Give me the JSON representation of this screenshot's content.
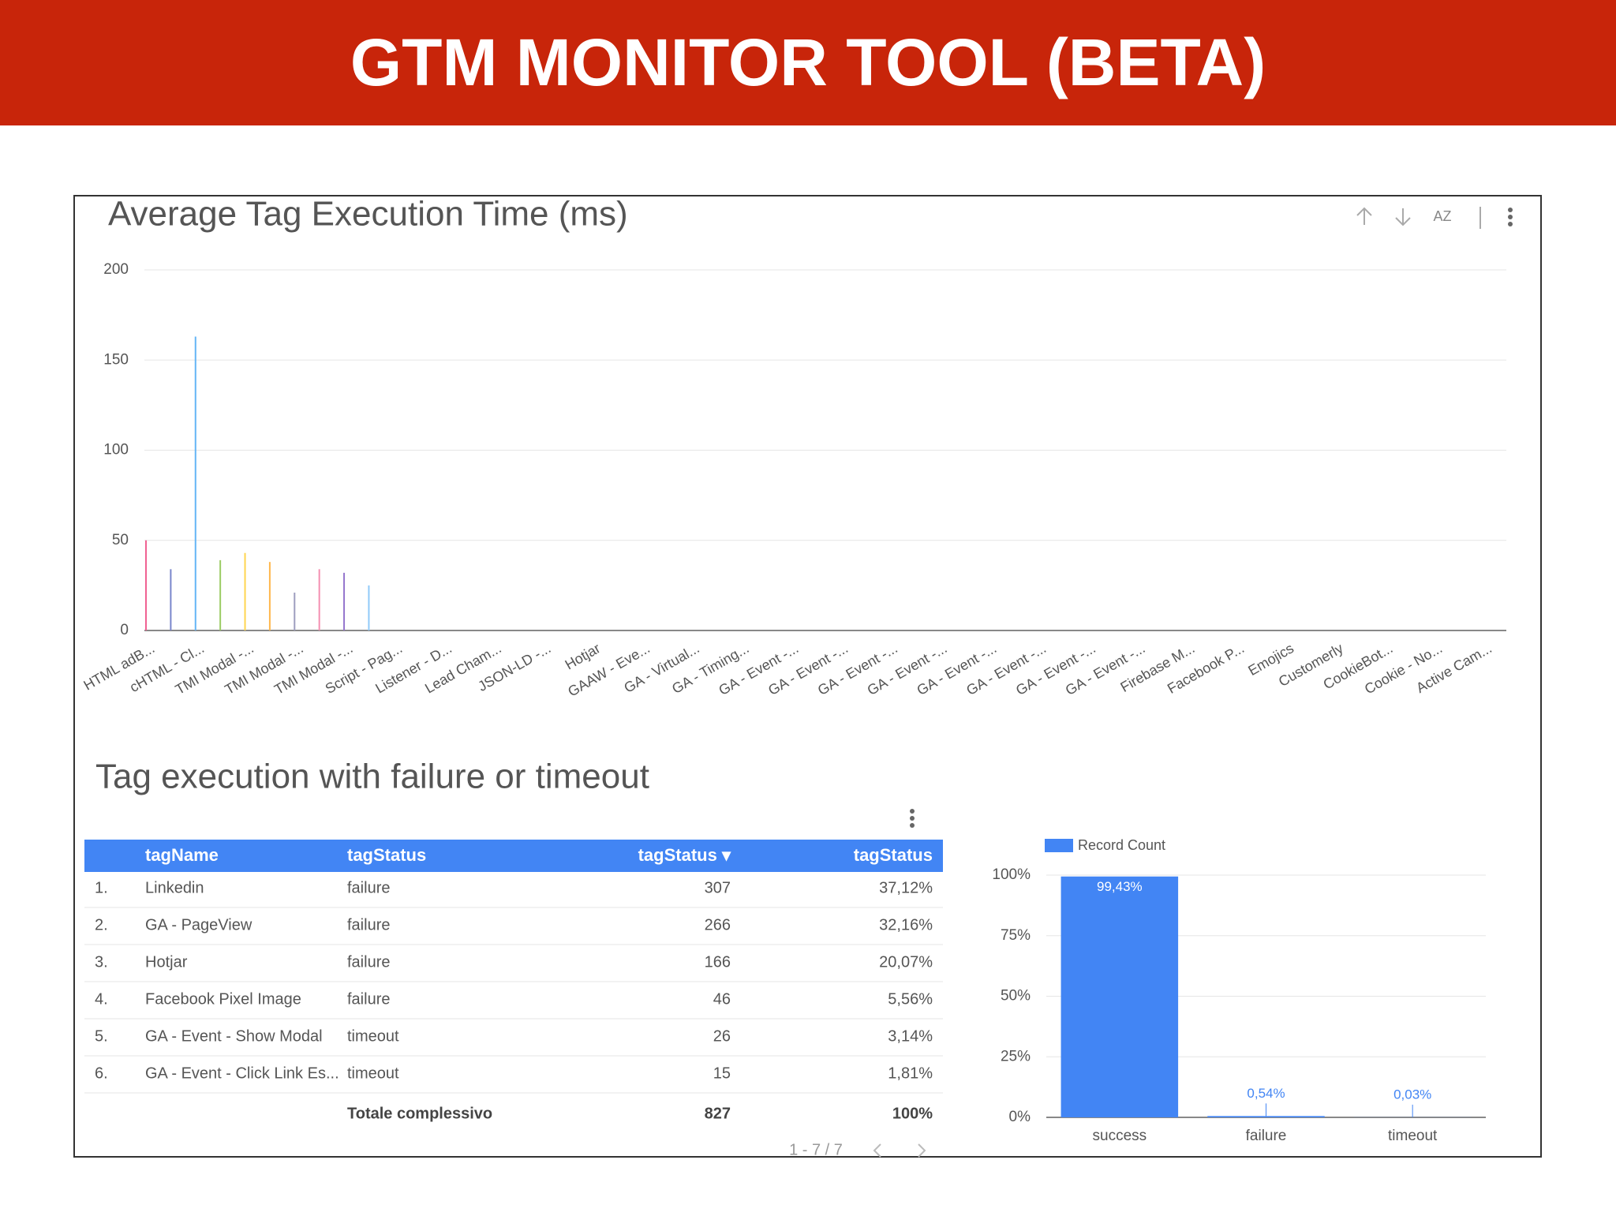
{
  "header": {
    "title": "GTM MONITOR TOOL (BETA)"
  },
  "chart_data": [
    {
      "type": "bar",
      "title": "Average Tag Execution Time (ms)",
      "categories": [
        "HTML adB...",
        null,
        "cHTML - Cl...",
        null,
        "TMI Modal -...",
        null,
        "TMI Modal -...",
        null,
        "TMI Modal -...",
        null,
        "Script - Pag...",
        null,
        "Listener - D...",
        null,
        "Lead Cham...",
        null,
        "JSON-LD -...",
        null,
        "Hotjar",
        null,
        "GAAW - Eve...",
        null,
        "GA - Virtual...",
        null,
        "GA - Timing...",
        null,
        "GA - Event -...",
        null,
        "GA - Event -...",
        null,
        "GA - Event -...",
        null,
        "GA - Event -...",
        null,
        "GA - Event -...",
        null,
        "GA - Event -...",
        null,
        "GA - Event -...",
        null,
        "GA - Event -...",
        null,
        "Firebase M...",
        null,
        "Facebook P...",
        null,
        "Emojics",
        null,
        "Customerly",
        null,
        "CookieBot...",
        null,
        "Cookie - No...",
        null,
        "Active Cam..."
      ],
      "values": [
        50,
        34,
        163,
        39,
        43,
        38,
        21,
        34,
        32,
        25,
        0,
        0,
        0,
        0,
        0,
        0,
        0,
        0,
        0,
        0,
        0,
        0,
        0,
        0,
        0,
        0,
        0,
        0,
        0,
        0,
        0,
        0,
        0,
        0,
        0,
        0,
        0,
        0,
        0,
        0,
        0,
        0,
        0,
        0,
        0,
        0,
        0,
        0,
        0,
        0,
        0,
        0,
        0,
        0,
        0
      ],
      "colors": [
        "#f06292",
        "#7986cb",
        "#64b5f6",
        "#9ccc65",
        "#ffd54f",
        "#ffb74d",
        "#9e9ebf",
        "#f48fb1",
        "#9575cd",
        "#90caf9"
      ],
      "ylim": [
        0,
        200
      ],
      "yticks": [
        0,
        50,
        100,
        150,
        200
      ],
      "grid": true
    },
    {
      "type": "bar",
      "title": "Tag execution with failure or timeout",
      "legend": "Record Count",
      "color": "#4285f4",
      "categories": [
        "success",
        "failure",
        "timeout"
      ],
      "values": [
        99.43,
        0.54,
        0.03
      ],
      "value_labels": [
        "99,43%",
        "0,54%",
        "0,03%"
      ],
      "ylim": [
        0,
        100
      ],
      "yticks": [
        {
          "value": 0,
          "label": "0%"
        },
        {
          "value": 25,
          "label": "25%"
        },
        {
          "value": 50,
          "label": "50%"
        },
        {
          "value": 75,
          "label": "75%"
        },
        {
          "value": 100,
          "label": "100%"
        }
      ],
      "grid": true
    }
  ],
  "table": {
    "headers": [
      "tagName",
      "tagStatus",
      "tagStatus ▾",
      "tagStatus"
    ],
    "rows": [
      [
        "1.",
        "Linkedin",
        "failure",
        307,
        "37,12%"
      ],
      [
        "2.",
        "GA - PageView",
        "failure",
        266,
        "32,16%"
      ],
      [
        "3.",
        "Hotjar",
        "failure",
        166,
        "20,07%"
      ],
      [
        "4.",
        "Facebook Pixel Image",
        "failure",
        46,
        "5,56%"
      ],
      [
        "5.",
        "GA - Event - Show Modal",
        "timeout",
        26,
        "3,14%"
      ],
      [
        "6.",
        "GA - Event - Click Link Es...",
        "timeout",
        15,
        "1,81%"
      ]
    ],
    "total": [
      "Totale complessivo",
      827,
      "100%"
    ],
    "pagination": "1 - 7 / 7"
  }
}
